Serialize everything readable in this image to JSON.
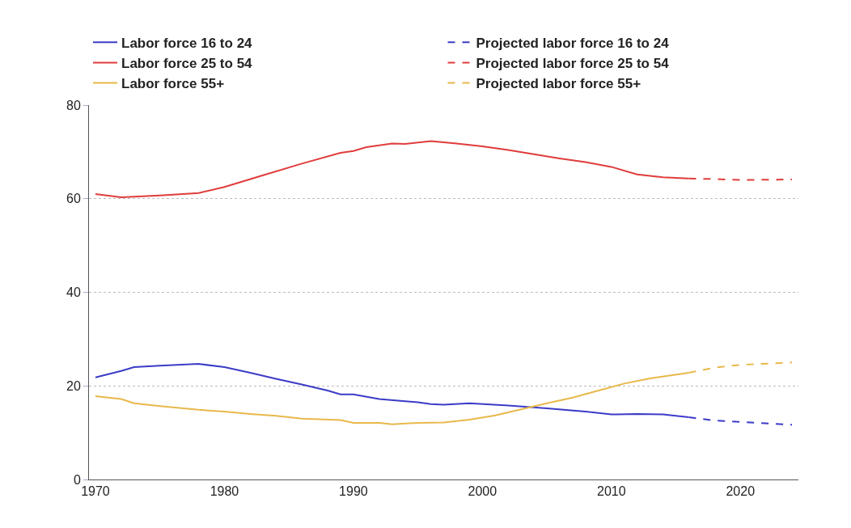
{
  "chart_data": {
    "type": "line",
    "xlim": [
      1969.5,
      2024.5
    ],
    "xticks": [
      1970,
      1980,
      1990,
      2000,
      2010,
      2020
    ],
    "ylim": [
      0,
      80
    ],
    "yticks": [
      0,
      20,
      40,
      60,
      80
    ],
    "grid": "y",
    "legend": "top",
    "marker": "none",
    "series": [
      {
        "name": "Labor force 16 to 24",
        "color": "#3b3bc8",
        "line_style": "solid",
        "x": [
          1970,
          1972,
          1973,
          1975,
          1978,
          1980,
          1982,
          1984,
          1986,
          1988,
          1989,
          1990,
          1992,
          1995,
          1996,
          1997,
          1999,
          2002,
          2005,
          2008,
          2010,
          2012,
          2014,
          2016
        ],
        "values": [
          21.8,
          23.2,
          24.0,
          24.3,
          24.7,
          24.0,
          22.8,
          21.5,
          20.3,
          19.0,
          18.2,
          18.2,
          17.2,
          16.5,
          16.1,
          16.0,
          16.3,
          15.8,
          15.2,
          14.5,
          13.9,
          14.0,
          13.9,
          13.3
        ]
      },
      {
        "name": "Projected labor force 16 to 24",
        "color": "#3b3bc8",
        "line_style": "dashed",
        "x": [
          2016,
          2018,
          2020,
          2024
        ],
        "values": [
          13.3,
          12.6,
          12.3,
          11.7
        ]
      },
      {
        "name": "Labor force 25 to 54",
        "color": "#e03c3c",
        "line_style": "solid",
        "x": [
          1970,
          1972,
          1975,
          1978,
          1980,
          1983,
          1986,
          1989,
          1990,
          1991,
          1993,
          1994,
          1996,
          1998,
          2000,
          2002,
          2004,
          2006,
          2008,
          2010,
          2012,
          2014,
          2016
        ],
        "values": [
          61.0,
          60.3,
          60.7,
          61.2,
          62.5,
          65.0,
          67.5,
          69.8,
          70.2,
          71.0,
          71.8,
          71.7,
          72.3,
          71.8,
          71.2,
          70.4,
          69.5,
          68.6,
          67.8,
          66.8,
          65.2,
          64.6,
          64.3
        ]
      },
      {
        "name": "Projected labor force 25 to 54",
        "color": "#e03c3c",
        "line_style": "dashed",
        "x": [
          2016,
          2018,
          2020,
          2024
        ],
        "values": [
          64.3,
          64.2,
          64.0,
          64.1
        ]
      },
      {
        "name": "Labor force 55+",
        "color": "#e8b84a",
        "line_style": "solid",
        "x": [
          1970,
          1972,
          1973,
          1975,
          1978,
          1980,
          1982,
          1984,
          1986,
          1989,
          1990,
          1992,
          1993,
          1995,
          1997,
          1999,
          2001,
          2003,
          2005,
          2007,
          2009,
          2011,
          2013,
          2016
        ],
        "values": [
          17.8,
          17.2,
          16.3,
          15.7,
          14.9,
          14.5,
          14.0,
          13.6,
          13.0,
          12.7,
          12.1,
          12.1,
          11.8,
          12.1,
          12.2,
          12.8,
          13.7,
          15.0,
          16.3,
          17.5,
          19.0,
          20.5,
          21.6,
          22.8
        ]
      },
      {
        "name": "Projected labor force 55+",
        "color": "#e8b84a",
        "line_style": "dashed",
        "x": [
          2016,
          2018,
          2020,
          2024
        ],
        "values": [
          22.8,
          23.9,
          24.5,
          25.0
        ]
      }
    ]
  }
}
